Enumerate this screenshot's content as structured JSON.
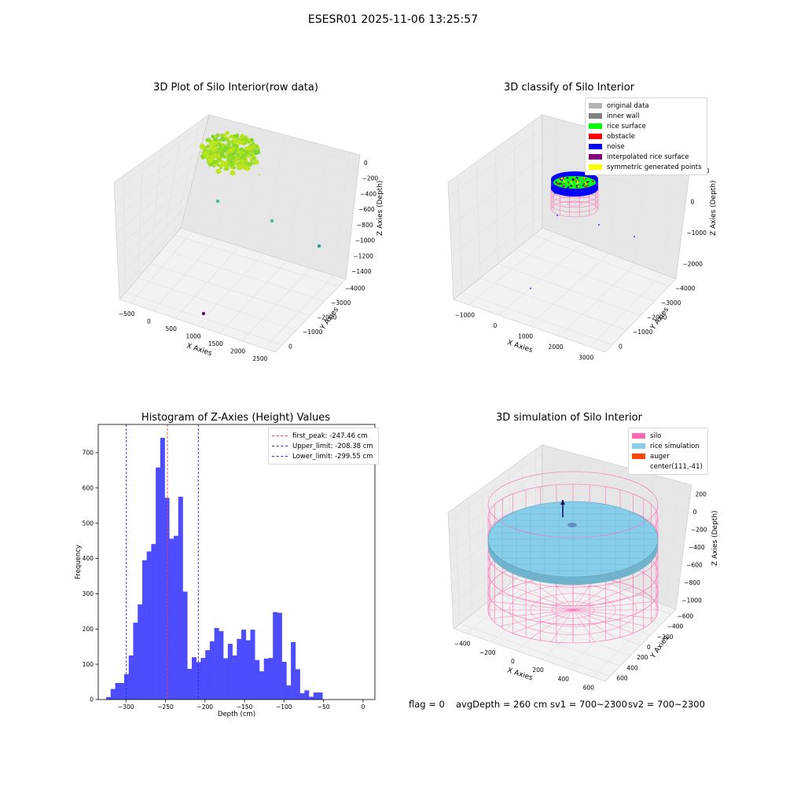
{
  "figure": {
    "suptitle": "ESESR01 2025-11-06 13:25:57",
    "footer": {
      "flag": "flag = 0",
      "avgDepth": "avgDepth = 260 cm",
      "sv1": "sv1 = 700~2300",
      "sv2": "sv2 = 700~2300"
    }
  },
  "colors": {
    "histogram_bars": "#4d4dff",
    "first_peak": "#ff3b3b",
    "limits": "#2727e0",
    "original_data": "#b3b3b3",
    "inner_wall": "#808080",
    "rice_surface": "#00ff00",
    "obstacle": "#ff0000",
    "noise": "#0000ff",
    "interpolated": "#800080",
    "symmetric": "#ffff00",
    "silo": "#ff69b4",
    "rice_simulation": "#87ceeb",
    "auger": "#ff4500"
  },
  "chart_data": [
    {
      "type": "scatter",
      "title": "3D Plot of Silo Interior(row data)",
      "xlabel": "X Axies",
      "ylabel": "Y Axies",
      "zlabel": "Z Axies (Depth)",
      "x_ticks": [
        "−500",
        "0",
        "500",
        "1000",
        "1500",
        "2000",
        "2500"
      ],
      "y_ticks": [
        "0",
        "−1000",
        "−2000",
        "−3000",
        "−4000"
      ],
      "z_ticks": [
        "0",
        "−200",
        "−400",
        "−600",
        "−800",
        "−1000",
        "−1200",
        "−1400"
      ],
      "outlier_points": [
        {
          "x": 300,
          "y": -500,
          "z": -600
        },
        {
          "x": 1100,
          "y": -1500,
          "z": -800
        },
        {
          "x": 2000,
          "y": -2400,
          "z": -1100
        },
        {
          "x": 1200,
          "y": -3800,
          "z": -1500
        }
      ]
    },
    {
      "type": "scatter",
      "title": "3D classify of Silo Interior",
      "xlabel": "X Axies",
      "ylabel": "Y Axies",
      "zlabel": "Z Axies (Depth)",
      "x_ticks": [
        "−1000",
        "0",
        "1000",
        "2000",
        "3000"
      ],
      "y_ticks": [
        "0",
        "−1000",
        "−2000",
        "−3000",
        "−4000"
      ],
      "z_ticks": [
        "1000",
        "0",
        "−1000",
        "−2000"
      ],
      "legend": [
        {
          "label": "original data",
          "color": "#b3b3b3"
        },
        {
          "label": "inner wall",
          "color": "#808080"
        },
        {
          "label": "rice surface",
          "color": "#00ff00"
        },
        {
          "label": "obstacle",
          "color": "#ff0000"
        },
        {
          "label": "noise",
          "color": "#0000ff"
        },
        {
          "label": "interpolated rice surface",
          "color": "#800080"
        },
        {
          "label": "symmetric generated points",
          "color": "#ffff00"
        }
      ]
    },
    {
      "type": "bar",
      "title": "Histogram of Z-Axies (Height) Values",
      "xlabel": "Depth (cm)",
      "ylabel": "Frequency",
      "xlim": [
        -335,
        15
      ],
      "ylim": [
        0,
        780
      ],
      "x_ticks": [
        -300,
        -250,
        -200,
        -150,
        -100,
        -50,
        0
      ],
      "x_tick_labels": [
        "−300",
        "−250",
        "−200",
        "−150",
        "−100",
        "−50",
        "0"
      ],
      "y_ticks": [
        0,
        100,
        200,
        300,
        400,
        500,
        600,
        700
      ],
      "bin_start": -325,
      "bin_width": 5.7,
      "values": [
        7,
        30,
        47,
        47,
        72,
        125,
        218,
        270,
        395,
        420,
        441,
        658,
        742,
        572,
        456,
        464,
        575,
        306,
        87,
        120,
        106,
        118,
        140,
        165,
        203,
        194,
        117,
        158,
        125,
        172,
        198,
        168,
        198,
        112,
        80,
        116,
        118,
        248,
        246,
        107,
        40,
        163,
        86,
        18,
        26,
        8,
        20,
        20
      ],
      "lines": [
        {
          "label": "first_peak: -247.46 cm",
          "x": -247.46,
          "color": "#ff3b3b"
        },
        {
          "label": "Upper_limit: -208.38 cm",
          "x": -208.38,
          "color": "#2727e0"
        },
        {
          "label": "Lower_limit: -299.55 cm",
          "x": -299.55,
          "color": "#2727e0"
        }
      ]
    },
    {
      "type": "scatter",
      "title": "3D simulation of Silo Interior",
      "xlabel": "X Axies",
      "ylabel": "Y Axies",
      "zlabel": "Z Axies (Depth)",
      "x_ticks": [
        "−400",
        "−200",
        "0",
        "200",
        "400",
        "600"
      ],
      "y_ticks": [
        "600",
        "400",
        "200",
        "0",
        "−200",
        "−400",
        "−600"
      ],
      "z_ticks": [
        "200",
        "0",
        "−200",
        "−400",
        "−600",
        "−800",
        "−1000"
      ],
      "legend": [
        {
          "label": "silo",
          "color": "#ff69b4"
        },
        {
          "label": "rice simulation",
          "color": "#87ceeb"
        },
        {
          "label": "auger",
          "color": "#ff4500"
        },
        {
          "label": "center(111,-41)",
          "color": ""
        }
      ]
    }
  ]
}
